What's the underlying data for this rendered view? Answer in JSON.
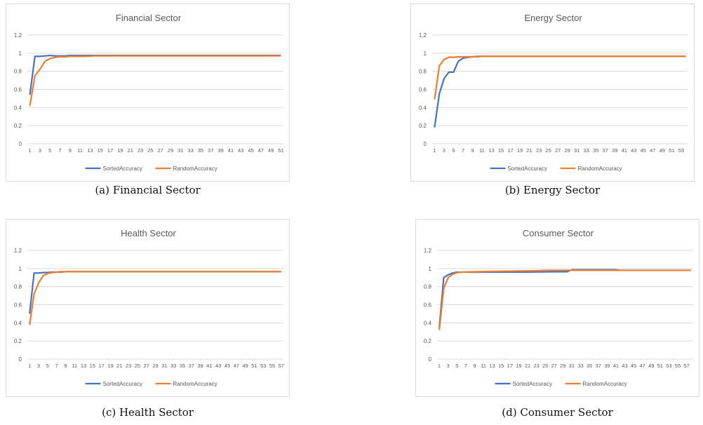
{
  "colors": {
    "sorted": "#4472c4",
    "random": "#ed7d31",
    "grid": "#d9d9d9",
    "text": "#595959"
  },
  "chart_data": [
    {
      "type": "line",
      "title": "Financial Sector",
      "caption": "(a)  Financial Sector",
      "ylim": [
        0,
        1.2
      ],
      "yticks": [
        "0",
        "0.2",
        "0.4",
        "0.6",
        "0.8",
        "1",
        "1.2"
      ],
      "x_start": 1,
      "x_end": 51,
      "x_tick_step": 2,
      "legend_position": "bottom",
      "series": [
        {
          "name": "SortedAccuracy",
          "points": [
            [
              1,
              0.54
            ],
            [
              2,
              0.965
            ],
            [
              3,
              0.965
            ],
            [
              4,
              0.97
            ],
            [
              5,
              0.975
            ],
            [
              6,
              0.97
            ],
            [
              7,
              0.97
            ],
            [
              8,
              0.97
            ],
            [
              9,
              0.975
            ],
            [
              10,
              0.975
            ],
            [
              11,
              0.975
            ],
            [
              12,
              0.975
            ],
            [
              14,
              0.975
            ],
            [
              51,
              0.975
            ]
          ]
        },
        {
          "name": "RandomAccuracy",
          "points": [
            [
              1,
              0.42
            ],
            [
              2,
              0.75
            ],
            [
              3,
              0.82
            ],
            [
              4,
              0.91
            ],
            [
              5,
              0.94
            ],
            [
              6,
              0.955
            ],
            [
              7,
              0.96
            ],
            [
              8,
              0.96
            ],
            [
              9,
              0.965
            ],
            [
              10,
              0.965
            ],
            [
              11,
              0.965
            ],
            [
              12,
              0.965
            ],
            [
              14,
              0.97
            ],
            [
              51,
              0.97
            ]
          ]
        }
      ]
    },
    {
      "type": "line",
      "title": "Energy Sector",
      "caption": "(b)  Energy Sector",
      "ylim": [
        0,
        1.2
      ],
      "yticks": [
        "0",
        "0.2",
        "0.4",
        "0.6",
        "0.8",
        "1",
        "1.2"
      ],
      "x_start": 1,
      "x_end": 54,
      "x_tick_step": 2,
      "legend_position": "bottom",
      "series": [
        {
          "name": "SortedAccuracy",
          "points": [
            [
              1,
              0.18
            ],
            [
              2,
              0.55
            ],
            [
              3,
              0.72
            ],
            [
              4,
              0.79
            ],
            [
              5,
              0.79
            ],
            [
              6,
              0.91
            ],
            [
              7,
              0.945
            ],
            [
              8,
              0.955
            ],
            [
              9,
              0.96
            ],
            [
              10,
              0.965
            ],
            [
              11,
              0.965
            ],
            [
              12,
              0.965
            ],
            [
              13,
              0.965
            ],
            [
              14,
              0.965
            ],
            [
              15,
              0.965
            ],
            [
              54,
              0.965
            ]
          ]
        },
        {
          "name": "RandomAccuracy",
          "points": [
            [
              1,
              0.49
            ],
            [
              2,
              0.86
            ],
            [
              3,
              0.93
            ],
            [
              4,
              0.955
            ],
            [
              5,
              0.955
            ],
            [
              6,
              0.96
            ],
            [
              7,
              0.96
            ],
            [
              8,
              0.96
            ],
            [
              9,
              0.96
            ],
            [
              10,
              0.96
            ],
            [
              11,
              0.965
            ],
            [
              12,
              0.965
            ],
            [
              14,
              0.965
            ],
            [
              54,
              0.965
            ]
          ]
        }
      ]
    },
    {
      "type": "line",
      "title": "Health Sector",
      "caption": "(c)  Health Sector",
      "ylim": [
        0,
        1.2
      ],
      "yticks": [
        "0",
        "0.2",
        "0.4",
        "0.6",
        "0.8",
        "1",
        "1.2"
      ],
      "x_start": 1,
      "x_end": 57,
      "x_tick_step": 2,
      "legend_position": "bottom",
      "series": [
        {
          "name": "SortedAccuracy",
          "points": [
            [
              1,
              0.5
            ],
            [
              2,
              0.95
            ],
            [
              3,
              0.95
            ],
            [
              4,
              0.955
            ],
            [
              5,
              0.955
            ],
            [
              6,
              0.96
            ],
            [
              7,
              0.96
            ],
            [
              8,
              0.96
            ],
            [
              9,
              0.965
            ],
            [
              10,
              0.965
            ],
            [
              57,
              0.965
            ]
          ]
        },
        {
          "name": "RandomAccuracy",
          "points": [
            [
              1,
              0.38
            ],
            [
              2,
              0.72
            ],
            [
              3,
              0.84
            ],
            [
              4,
              0.92
            ],
            [
              5,
              0.945
            ],
            [
              6,
              0.955
            ],
            [
              7,
              0.96
            ],
            [
              8,
              0.965
            ],
            [
              9,
              0.965
            ],
            [
              10,
              0.965
            ],
            [
              57,
              0.965
            ]
          ]
        }
      ]
    },
    {
      "type": "line",
      "title": "Consumer Sector",
      "caption": "(d)  Consumer Sector",
      "ylim": [
        0,
        1.2
      ],
      "yticks": [
        "0",
        "0.2",
        "0.4",
        "0.6",
        "0.8",
        "1",
        "1.2"
      ],
      "x_start": 1,
      "x_end": 58,
      "x_tick_step": 2,
      "legend_position": "bottom",
      "series": [
        {
          "name": "SortedAccuracy",
          "points": [
            [
              1,
              0.35
            ],
            [
              2,
              0.9
            ],
            [
              3,
              0.93
            ],
            [
              4,
              0.95
            ],
            [
              5,
              0.96
            ],
            [
              6,
              0.96
            ],
            [
              10,
              0.96
            ],
            [
              20,
              0.96
            ],
            [
              30,
              0.965
            ],
            [
              31,
              0.985
            ],
            [
              41,
              0.985
            ],
            [
              42,
              0.98
            ],
            [
              58,
              0.98
            ]
          ]
        },
        {
          "name": "RandomAccuracy",
          "points": [
            [
              1,
              0.32
            ],
            [
              2,
              0.78
            ],
            [
              3,
              0.9
            ],
            [
              4,
              0.935
            ],
            [
              5,
              0.955
            ],
            [
              6,
              0.96
            ],
            [
              10,
              0.965
            ],
            [
              15,
              0.97
            ],
            [
              23,
              0.975
            ],
            [
              25,
              0.98
            ],
            [
              30,
              0.98
            ],
            [
              31,
              0.98
            ],
            [
              42,
              0.98
            ],
            [
              58,
              0.98
            ]
          ]
        }
      ]
    }
  ]
}
